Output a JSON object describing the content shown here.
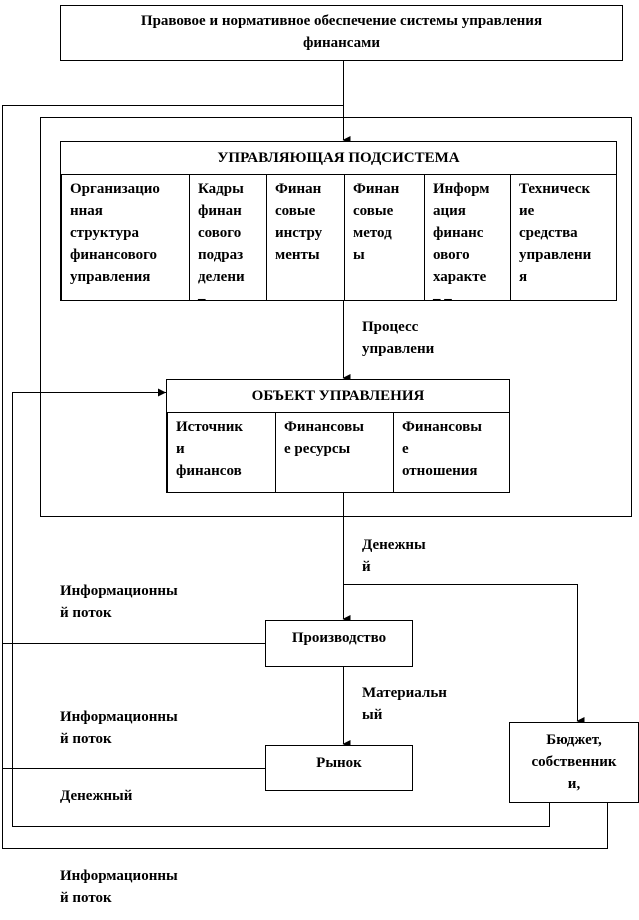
{
  "top_box": {
    "title": "Правовое и нормативное обеспечение системы управления\nфинансами"
  },
  "subsystem": {
    "title": "УПРАВЛЯЮЩАЯ ПОДСИСТЕМА",
    "columns": [
      "Организацио\nнная\nструктура\nфинансового\nуправления",
      "Кадры\nфинан\nсового\nподраз\nделени\n–",
      "Финан\nсовые\nинстру\nменты",
      "Финан\nсовые\nметод\nы",
      "Информ\nация\nфинанс\nового\nхаракте\n– –",
      "Техническ\nие\nсредства\nуправлени\nя"
    ]
  },
  "object": {
    "title": "ОБЪЕКТ УПРАВЛЕНИЯ",
    "columns": [
      "Источник\nи\nфинансов",
      "Финансовы\nе ресурсы",
      "Финансовы\nе\nотношения"
    ]
  },
  "labels": {
    "process": "Процесс\nуправлени",
    "money_1": "Денежны\nй",
    "info_1": "Информационны\nй поток",
    "material": "Материальн\nый",
    "info_2": "Информационны\nй поток",
    "money_2": "Денежный",
    "info_3": "Информационны\nй поток"
  },
  "production": "Производство",
  "market": "Рынок",
  "budget": "Бюджет,\nсобственник\nи,"
}
